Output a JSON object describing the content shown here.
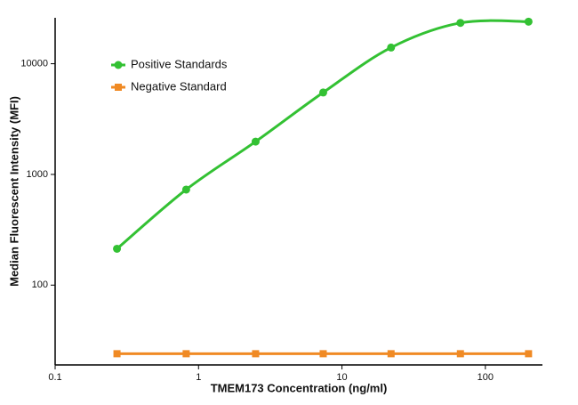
{
  "chart_data": {
    "type": "line",
    "x_label": "TMEM173 Concentration (ng/ml)",
    "y_label": "Median Fluorescent Intensity (MFI)",
    "x": [
      0.27,
      0.82,
      2.5,
      7.4,
      22,
      67,
      200
    ],
    "series": [
      {
        "name": "Positive Standards",
        "color": "#33c133",
        "marker": "circle",
        "values": [
          213,
          730,
          1980,
          5500,
          14000,
          23400,
          24000
        ]
      },
      {
        "name": "Negative Standard",
        "color": "#f08a24",
        "marker": "square",
        "values": [
          24,
          24,
          24,
          24,
          24,
          24,
          24
        ]
      }
    ],
    "xscale": "log",
    "yscale": "log",
    "xlim": [
      0.1,
      250
    ],
    "ylim": [
      19,
      26000
    ],
    "xticks": [
      0.1,
      1,
      10,
      100
    ],
    "yticks": [
      100,
      1000,
      10000
    ],
    "grid": false,
    "legend": "upper left"
  }
}
